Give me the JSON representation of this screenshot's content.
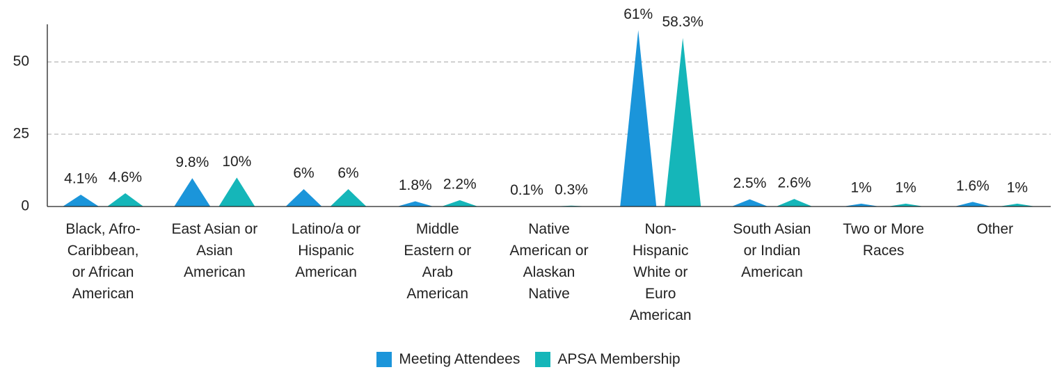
{
  "chart_data": {
    "type": "triangle-bar",
    "categories": [
      "Black, Afro-Caribbean, or African American",
      "East Asian or Asian American",
      "Latino/a or Hispanic American",
      "Middle Eastern or Arab American",
      "Native American or Alaskan Native",
      "Non-Hispanic White or Euro American",
      "South Asian or Indian American",
      "Two or More Races",
      "Other"
    ],
    "series": [
      {
        "name": "Meeting Attendees",
        "color": "#1b95da",
        "values": [
          4.1,
          9.8,
          6,
          1.8,
          0.1,
          61,
          2.5,
          1,
          1.6
        ],
        "value_labels": [
          "4.1%",
          "9.8%",
          "6%",
          "1.8%",
          "0.1%",
          "61%",
          "2.5%",
          "1%",
          "1.6%"
        ]
      },
      {
        "name": "APSA Membership",
        "color": "#15b6b9",
        "values": [
          4.6,
          10,
          6,
          2.2,
          0.3,
          58.3,
          2.6,
          1,
          1
        ],
        "value_labels": [
          "4.6%",
          "10%",
          "6%",
          "2.2%",
          "0.3%",
          "58.3%",
          "2.6%",
          "1%",
          "1%"
        ]
      }
    ],
    "ylim": [
      0,
      63
    ],
    "yticks": [
      0,
      25,
      50
    ],
    "grid": true,
    "legend": "bottom"
  }
}
